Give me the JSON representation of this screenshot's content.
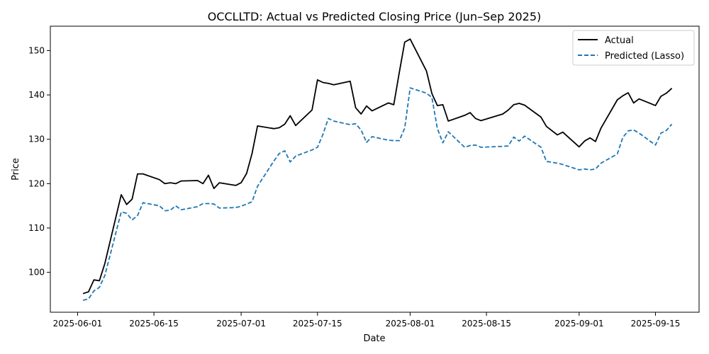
{
  "chart_data": {
    "type": "line",
    "title": "OCCLLTD: Actual vs Predicted Closing Price (Jun–Sep 2025)",
    "xlabel": "Date",
    "ylabel": "Price",
    "xlim": [
      "2025-05-27",
      "2025-09-23"
    ],
    "ylim": [
      91.0,
      155.5
    ],
    "x_ticks": [
      "2025-06-01",
      "2025-06-15",
      "2025-07-01",
      "2025-07-15",
      "2025-08-01",
      "2025-08-15",
      "2025-09-01",
      "2025-09-15"
    ],
    "y_ticks": [
      100,
      110,
      120,
      130,
      140,
      150
    ],
    "grid": false,
    "legend_position": "top-right",
    "x": [
      "2025-06-02",
      "2025-06-03",
      "2025-06-04",
      "2025-06-05",
      "2025-06-06",
      "2025-06-09",
      "2025-06-10",
      "2025-06-11",
      "2025-06-12",
      "2025-06-13",
      "2025-06-16",
      "2025-06-17",
      "2025-06-18",
      "2025-06-19",
      "2025-06-20",
      "2025-06-23",
      "2025-06-24",
      "2025-06-25",
      "2025-06-26",
      "2025-06-27",
      "2025-06-30",
      "2025-07-01",
      "2025-07-02",
      "2025-07-03",
      "2025-07-04",
      "2025-07-07",
      "2025-07-08",
      "2025-07-09",
      "2025-07-10",
      "2025-07-11",
      "2025-07-14",
      "2025-07-15",
      "2025-07-16",
      "2025-07-17",
      "2025-07-18",
      "2025-07-21",
      "2025-07-22",
      "2025-07-23",
      "2025-07-24",
      "2025-07-25",
      "2025-07-28",
      "2025-07-29",
      "2025-07-30",
      "2025-07-31",
      "2025-08-01",
      "2025-08-04",
      "2025-08-05",
      "2025-08-06",
      "2025-08-07",
      "2025-08-08",
      "2025-08-11",
      "2025-08-12",
      "2025-08-13",
      "2025-08-14",
      "2025-08-18",
      "2025-08-19",
      "2025-08-20",
      "2025-08-21",
      "2025-08-22",
      "2025-08-25",
      "2025-08-26",
      "2025-08-28",
      "2025-08-29",
      "2025-09-01",
      "2025-09-02",
      "2025-09-03",
      "2025-09-04",
      "2025-09-05",
      "2025-09-08",
      "2025-09-09",
      "2025-09-10",
      "2025-09-11",
      "2025-09-12",
      "2025-09-15",
      "2025-09-16",
      "2025-09-17",
      "2025-09-18"
    ],
    "series": [
      {
        "name": "Actual",
        "color": "#000000",
        "style": "solid",
        "values": [
          95.2,
          95.6,
          98.3,
          98.1,
          102.0,
          117.5,
          115.3,
          116.5,
          122.2,
          122.2,
          120.9,
          120.0,
          120.2,
          120.0,
          120.6,
          120.7,
          120.0,
          121.9,
          118.9,
          120.2,
          119.6,
          120.2,
          122.3,
          126.8,
          133.0,
          132.4,
          132.6,
          133.4,
          135.3,
          133.1,
          136.6,
          143.4,
          142.8,
          142.6,
          142.3,
          143.1,
          137.1,
          135.7,
          137.5,
          136.4,
          138.2,
          137.8,
          145.0,
          151.9,
          152.6,
          145.4,
          140.3,
          137.6,
          137.8,
          134.1,
          135.4,
          136.0,
          134.7,
          134.2,
          135.7,
          136.6,
          137.8,
          138.1,
          137.7,
          135.0,
          132.9,
          131.0,
          131.6,
          128.3,
          129.6,
          130.3,
          129.5,
          132.5,
          138.9,
          139.8,
          140.5,
          138.2,
          139.1,
          137.6,
          139.7,
          140.4,
          141.5
        ]
      },
      {
        "name": "Predicted (Lasso)",
        "color": "#1f77b4",
        "style": "dashed",
        "values": [
          93.7,
          94.0,
          95.8,
          96.6,
          99.3,
          113.6,
          113.3,
          111.8,
          112.8,
          115.7,
          115.0,
          113.9,
          114.0,
          115.0,
          114.1,
          114.8,
          115.5,
          115.5,
          115.4,
          114.5,
          114.6,
          114.9,
          115.4,
          115.9,
          119.4,
          125.1,
          126.8,
          127.4,
          124.9,
          126.2,
          127.6,
          128.2,
          131.1,
          134.7,
          134.1,
          133.3,
          133.5,
          132.1,
          129.3,
          130.6,
          129.8,
          129.7,
          129.7,
          132.5,
          141.6,
          140.4,
          139.4,
          132.4,
          129.2,
          131.7,
          128.2,
          128.6,
          128.7,
          128.2,
          128.4,
          128.5,
          130.5,
          129.6,
          130.7,
          128.2,
          125.0,
          124.6,
          124.3,
          123.1,
          123.3,
          123.1,
          123.3,
          124.6,
          126.7,
          130.4,
          131.9,
          132.1,
          131.4,
          128.7,
          131.4,
          132.0,
          133.4
        ]
      }
    ]
  }
}
